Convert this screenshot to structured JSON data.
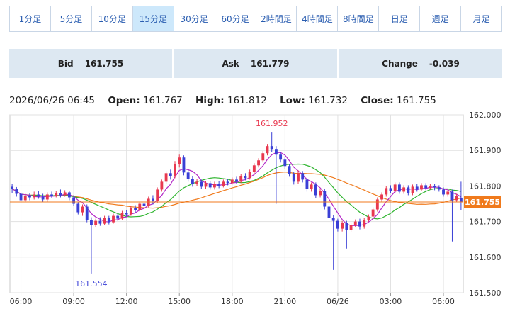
{
  "tabs": [
    {
      "label": "1分足"
    },
    {
      "label": "5分足"
    },
    {
      "label": "10分足"
    },
    {
      "label": "15分足",
      "active": true
    },
    {
      "label": "30分足"
    },
    {
      "label": "60分足"
    },
    {
      "label": "2時間足"
    },
    {
      "label": "4時間足"
    },
    {
      "label": "8時間足"
    },
    {
      "label": "日足"
    },
    {
      "label": "週足"
    },
    {
      "label": "月足"
    }
  ],
  "quotes": {
    "bid_label": "Bid",
    "bid_value": "161.755",
    "ask_label": "Ask",
    "ask_value": "161.779",
    "change_label": "Change",
    "change_value": "-0.039"
  },
  "ohlc": {
    "timestamp": "2026/06/26 06:45",
    "open_label": "Open:",
    "open": "161.767",
    "high_label": "High:",
    "high": "161.812",
    "low_label": "Low:",
    "low": "161.732",
    "close_label": "Close:",
    "close": "161.755"
  },
  "colors": {
    "up": "#e8384f",
    "down": "#3a3fd6",
    "ma_short": "#b428c8",
    "ma_mid": "#2fb52f",
    "ma_long": "#f07a1c",
    "price_line": "#f07a1c"
  },
  "chart_data": {
    "type": "candlestick",
    "ylim": [
      161.5,
      162.0
    ],
    "y_ticks": [
      "162.000",
      "161.900",
      "161.800",
      "161.700",
      "161.600",
      "161.500"
    ],
    "x_ticks": [
      {
        "label": "06:00",
        "index": 2
      },
      {
        "label": "09:00",
        "index": 14
      },
      {
        "label": "12:00",
        "index": 26
      },
      {
        "label": "15:00",
        "index": 38
      },
      {
        "label": "18:00",
        "index": 50
      },
      {
        "label": "21:00",
        "index": 62
      },
      {
        "label": "06/26",
        "index": 74
      },
      {
        "label": "03:00",
        "index": 86
      },
      {
        "label": "06:00",
        "index": 98
      }
    ],
    "current_price": "161.755",
    "current_price_value": 161.755,
    "annotations": [
      {
        "text": "161.952",
        "index": 59,
        "value": 161.952,
        "position": "above"
      },
      {
        "text": "161.554",
        "index": 18,
        "value": 161.554,
        "position": "below"
      }
    ],
    "candles": [
      [
        161.798,
        161.792,
        161.805,
        161.78
      ],
      [
        161.792,
        161.778,
        161.797,
        161.77
      ],
      [
        161.778,
        161.76,
        161.782,
        161.752
      ],
      [
        161.76,
        161.772,
        161.778,
        161.756
      ],
      [
        161.772,
        161.768,
        161.78,
        161.76
      ],
      [
        161.768,
        161.776,
        161.784,
        161.762
      ],
      [
        161.776,
        161.77,
        161.786,
        161.764
      ],
      [
        161.77,
        161.762,
        161.778,
        161.756
      ],
      [
        161.762,
        161.776,
        161.782,
        161.756
      ],
      [
        161.776,
        161.772,
        161.784,
        161.766
      ],
      [
        161.772,
        161.78,
        161.786,
        161.768
      ],
      [
        161.78,
        161.774,
        161.79,
        161.768
      ],
      [
        161.774,
        161.782,
        161.788,
        161.77
      ],
      [
        161.782,
        161.768,
        161.786,
        161.76
      ],
      [
        161.768,
        161.75,
        161.774,
        161.744
      ],
      [
        161.75,
        161.726,
        161.756,
        161.72
      ],
      [
        161.726,
        161.742,
        161.748,
        161.716
      ],
      [
        161.742,
        161.704,
        161.748,
        161.698
      ],
      [
        161.704,
        161.69,
        161.712,
        161.554
      ],
      [
        161.69,
        161.702,
        161.708,
        161.684
      ],
      [
        161.702,
        161.694,
        161.712,
        161.688
      ],
      [
        161.694,
        161.71,
        161.716,
        161.69
      ],
      [
        161.71,
        161.698,
        161.716,
        161.692
      ],
      [
        161.698,
        161.716,
        161.722,
        161.694
      ],
      [
        161.716,
        161.708,
        161.722,
        161.702
      ],
      [
        161.708,
        161.724,
        161.73,
        161.704
      ],
      [
        161.724,
        161.72,
        161.732,
        161.714
      ],
      [
        161.72,
        161.738,
        161.744,
        161.716
      ],
      [
        161.738,
        161.732,
        161.746,
        161.726
      ],
      [
        161.732,
        161.75,
        161.756,
        161.728
      ],
      [
        161.75,
        161.744,
        161.76,
        161.738
      ],
      [
        161.744,
        161.764,
        161.77,
        161.74
      ],
      [
        161.764,
        161.758,
        161.774,
        161.748
      ],
      [
        161.758,
        161.79,
        161.796,
        161.752
      ],
      [
        161.79,
        161.812,
        161.818,
        161.784
      ],
      [
        161.812,
        161.836,
        161.842,
        161.806
      ],
      [
        161.836,
        161.828,
        161.846,
        161.818
      ],
      [
        161.828,
        161.862,
        161.87,
        161.822
      ],
      [
        161.862,
        161.88,
        161.888,
        161.852
      ],
      [
        161.88,
        161.838,
        161.886,
        161.83
      ],
      [
        161.838,
        161.82,
        161.846,
        161.812
      ],
      [
        161.82,
        161.806,
        161.828,
        161.798
      ],
      [
        161.806,
        161.812,
        161.82,
        161.8
      ],
      [
        161.812,
        161.798,
        161.818,
        161.792
      ],
      [
        161.798,
        161.808,
        161.814,
        161.792
      ],
      [
        161.808,
        161.796,
        161.814,
        161.79
      ],
      [
        161.796,
        161.806,
        161.812,
        161.79
      ],
      [
        161.806,
        161.8,
        161.814,
        161.794
      ],
      [
        161.8,
        161.812,
        161.818,
        161.796
      ],
      [
        161.812,
        161.808,
        161.82,
        161.802
      ],
      [
        161.808,
        161.818,
        161.824,
        161.804
      ],
      [
        161.818,
        161.812,
        161.826,
        161.806
      ],
      [
        161.812,
        161.828,
        161.834,
        161.808
      ],
      [
        161.828,
        161.822,
        161.836,
        161.816
      ],
      [
        161.822,
        161.84,
        161.846,
        161.818
      ],
      [
        161.84,
        161.858,
        161.864,
        161.834
      ],
      [
        161.858,
        161.872,
        161.878,
        161.852
      ],
      [
        161.872,
        161.892,
        161.898,
        161.866
      ],
      [
        161.892,
        161.912,
        161.918,
        161.886
      ],
      [
        161.912,
        161.904,
        161.952,
        161.896
      ],
      [
        161.904,
        161.888,
        161.912,
        161.75
      ],
      [
        161.888,
        161.874,
        161.896,
        161.866
      ],
      [
        161.874,
        161.856,
        161.88,
        161.848
      ],
      [
        161.856,
        161.834,
        161.862,
        161.826
      ],
      [
        161.834,
        161.812,
        161.84,
        161.804
      ],
      [
        161.812,
        161.836,
        161.844,
        161.806
      ],
      [
        161.836,
        161.818,
        161.842,
        161.81
      ],
      [
        161.818,
        161.792,
        161.824,
        161.784
      ],
      [
        161.792,
        161.804,
        161.81,
        161.784
      ],
      [
        161.804,
        161.774,
        161.81,
        161.766
      ],
      [
        161.774,
        161.786,
        161.792,
        161.768
      ],
      [
        161.786,
        161.742,
        161.792,
        161.734
      ],
      [
        161.742,
        161.71,
        161.75,
        161.702
      ],
      [
        161.71,
        161.702,
        161.718,
        161.564
      ],
      [
        161.702,
        161.68,
        161.708,
        161.672
      ],
      [
        161.68,
        161.696,
        161.702,
        161.672
      ],
      [
        161.696,
        161.676,
        161.702,
        161.624
      ],
      [
        161.676,
        161.69,
        161.696,
        161.67
      ],
      [
        161.69,
        161.7,
        161.706,
        161.684
      ],
      [
        161.7,
        161.686,
        161.708,
        161.678
      ],
      [
        161.686,
        161.704,
        161.71,
        161.68
      ],
      [
        161.704,
        161.714,
        161.72,
        161.7
      ],
      [
        161.714,
        161.734,
        161.74,
        161.708
      ],
      [
        161.734,
        161.762,
        161.768,
        161.728
      ],
      [
        161.762,
        161.776,
        161.782,
        161.756
      ],
      [
        161.776,
        161.794,
        161.8,
        161.77
      ],
      [
        161.794,
        161.786,
        161.802,
        161.78
      ],
      [
        161.786,
        161.804,
        161.81,
        161.78
      ],
      [
        161.804,
        161.784,
        161.81,
        161.778
      ],
      [
        161.784,
        161.796,
        161.802,
        161.778
      ],
      [
        161.796,
        161.78,
        161.802,
        161.774
      ],
      [
        161.78,
        161.798,
        161.804,
        161.774
      ],
      [
        161.798,
        161.79,
        161.806,
        161.784
      ],
      [
        161.79,
        161.802,
        161.808,
        161.786
      ],
      [
        161.802,
        161.794,
        161.808,
        161.788
      ],
      [
        161.794,
        161.8,
        161.806,
        161.79
      ],
      [
        161.8,
        161.796,
        161.806,
        161.788
      ],
      [
        161.796,
        161.79,
        161.802,
        161.784
      ],
      [
        161.79,
        161.776,
        161.796,
        161.77
      ],
      [
        161.776,
        161.784,
        161.79,
        161.77
      ],
      [
        161.784,
        161.76,
        161.79,
        161.644
      ],
      [
        161.76,
        161.772,
        161.778,
        161.754
      ],
      [
        161.767,
        161.755,
        161.812,
        161.732
      ]
    ]
  }
}
